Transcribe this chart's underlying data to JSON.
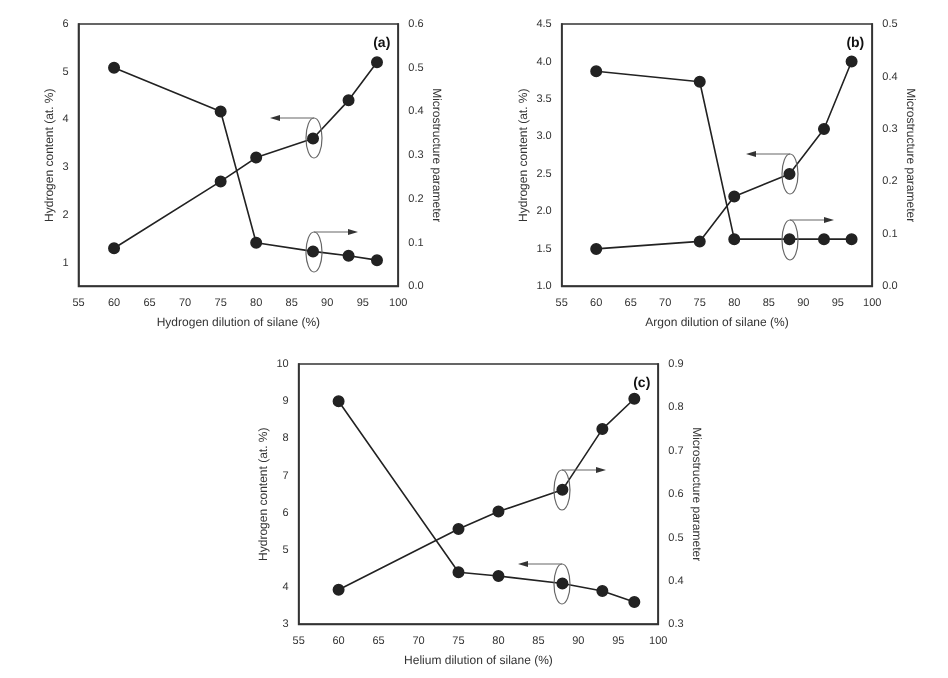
{
  "chart_data": [
    {
      "type": "line",
      "xlabel": "Hydrogen dilution of silane (%)",
      "ylabel": "Hydrogen content (at. %)",
      "y2label": "Microstructure parameter",
      "annotations": [
        "(a)"
      ],
      "x": [
        60,
        75,
        80,
        88,
        93,
        97
      ],
      "series": [
        {
          "color": "#222222",
          "values": [
            1.3,
            2.7,
            3.2,
            3.6,
            4.4,
            5.2
          ]
        },
        {
          "color": "#222222",
          "axis": "y2",
          "values": [
            0.5,
            0.4,
            0.1,
            0.08,
            0.07,
            0.06
          ]
        }
      ],
      "xlim": [
        55,
        100
      ],
      "xticks": [
        55,
        60,
        65,
        70,
        75,
        80,
        85,
        90,
        95,
        100
      ],
      "ylim": [
        0.5,
        6
      ],
      "yticks": [
        1,
        2,
        3,
        4,
        5,
        6
      ],
      "y2lim": [
        0,
        0.6
      ],
      "y2ticks": [
        {
          "value": 0,
          "label": "0.0"
        },
        0.1,
        0.2,
        0.3,
        0.4,
        0.5,
        0.6
      ],
      "marker": "circle",
      "grid": false,
      "legend": false
    },
    {
      "type": "line",
      "xlabel": "Argon dilution of silane (%)",
      "ylabel": "Hydrogen content (at. %)",
      "y2label": "Microstructure parameter",
      "annotations": [
        "(b)"
      ],
      "x": [
        60,
        75,
        80,
        88,
        93,
        97
      ],
      "series": [
        {
          "color": "#222222",
          "values": [
            1.5,
            1.6,
            2.2,
            2.5,
            3.1,
            4.0
          ]
        },
        {
          "color": "#222222",
          "axis": "y2",
          "values": [
            0.41,
            0.39,
            0.09,
            0.09,
            0.09,
            0.09
          ]
        }
      ],
      "xlim": [
        55,
        100
      ],
      "xticks": [
        55,
        60,
        65,
        70,
        75,
        80,
        85,
        90,
        95,
        100
      ],
      "ylim": [
        1,
        4.5
      ],
      "yticks": [
        {
          "value": 1,
          "label": "1.0"
        },
        1.5,
        {
          "value": 2,
          "label": "2.0"
        },
        2.5,
        {
          "value": 3,
          "label": "3.0"
        },
        3.5,
        {
          "value": 4,
          "label": "4.0"
        },
        4.5
      ],
      "y2lim": [
        0,
        0.5
      ],
      "y2ticks": [
        {
          "value": 0,
          "label": "0.0"
        },
        0.1,
        0.2,
        0.3,
        0.4,
        0.5
      ],
      "marker": "circle",
      "grid": false,
      "legend": false
    },
    {
      "type": "line",
      "xlabel": "Helium dilution of silane (%)",
      "ylabel": "Hydrogen content (at. %)",
      "y2label": "Microstructure parameter",
      "annotations": [
        "(c)"
      ],
      "x": [
        60,
        75,
        80,
        88,
        93,
        97
      ],
      "series": [
        {
          "color": "#222222",
          "values": [
            9.0,
            4.4,
            4.3,
            4.1,
            3.9,
            3.6
          ]
        },
        {
          "color": "#222222",
          "axis": "y2",
          "values": [
            0.38,
            0.52,
            0.56,
            0.61,
            0.75,
            0.82
          ]
        }
      ],
      "xlim": [
        55,
        100
      ],
      "xticks": [
        55,
        60,
        65,
        70,
        75,
        80,
        85,
        90,
        95,
        100
      ],
      "ylim": [
        3,
        10
      ],
      "yticks": [
        3,
        4,
        5,
        6,
        7,
        8,
        9,
        10
      ],
      "y2lim": [
        0.3,
        0.9
      ],
      "y2ticks": [
        0.3,
        0.4,
        0.5,
        0.6,
        0.7,
        0.8,
        0.9
      ],
      "marker": "circle",
      "grid": false,
      "legend": false
    }
  ]
}
